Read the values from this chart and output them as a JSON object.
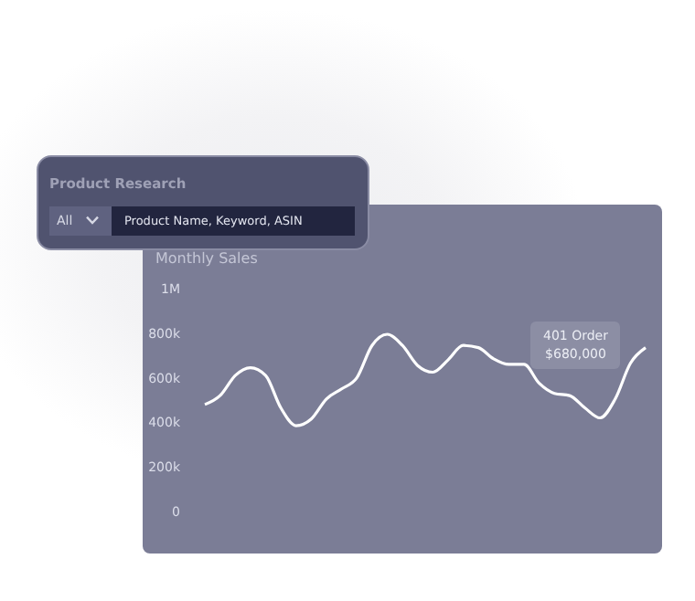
{
  "chart_data": {
    "type": "line",
    "title": "Monthly Sales",
    "categories": [
      null,
      null,
      null,
      null,
      null,
      null,
      null,
      null,
      null,
      null,
      null,
      null,
      null,
      null,
      null,
      null,
      null,
      null,
      null,
      null,
      null,
      null,
      null,
      null,
      null,
      null,
      null,
      null,
      null,
      null
    ],
    "series": [
      {
        "color": "#ffffff",
        "values": [
          480000,
          520000,
          610000,
          645000,
          610000,
          465000,
          385000,
          415000,
          505000,
          550000,
          600000,
          745000,
          795000,
          745000,
          655000,
          625000,
          680000,
          745000,
          735000,
          685000,
          660000,
          660000,
          575000,
          530000,
          520000,
          465000,
          420000,
          505000,
          665000,
          735000
        ]
      }
    ],
    "ylim": [
      0,
      1000000
    ],
    "yticks": [
      0,
      {
        "value": 200000,
        "label": "200k"
      },
      {
        "value": 400000,
        "label": "400k"
      },
      {
        "value": 600000,
        "label": "600k"
      },
      {
        "value": 800000,
        "label": "800k"
      },
      {
        "value": 1000000,
        "label": "1M"
      }
    ],
    "grid": false,
    "legend": false,
    "marker": "none",
    "line_style": "solid",
    "annotations": [
      "401 Order",
      "$680,000",
      "Product Research",
      "All",
      "Product Name, Keyword, ASIN"
    ]
  }
}
